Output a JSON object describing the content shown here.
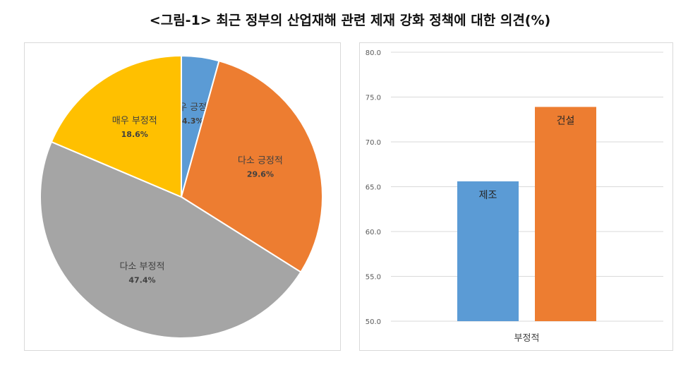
{
  "title": "<그림-1> 최근 정부의 산업재해 관련 제재 강화 정책에 대한 의견(%)",
  "chart_data": [
    {
      "type": "pie",
      "slices": [
        {
          "label": "매우 긍정적",
          "value": 4.3,
          "value_label": "4.3%",
          "color": "#5b9bd5"
        },
        {
          "label": "다소 긍정적",
          "value": 29.6,
          "value_label": "29.6%",
          "color": "#ed7d31"
        },
        {
          "label": "다소 부정적",
          "value": 47.4,
          "value_label": "47.4%",
          "color": "#a5a5a5"
        },
        {
          "label": "매우 부정적",
          "value": 18.6,
          "value_label": "18.6%",
          "color": "#ffc000"
        }
      ]
    },
    {
      "type": "bar",
      "categories": [
        "부정적"
      ],
      "series": [
        {
          "name": "제조",
          "values": [
            65.6
          ],
          "color": "#5b9bd5"
        },
        {
          "name": "건설",
          "values": [
            73.9
          ],
          "color": "#ed7d31"
        }
      ],
      "ylim": [
        50,
        80
      ],
      "yticks": [
        "50.0",
        "55.0",
        "60.0",
        "65.0",
        "70.0",
        "75.0",
        "80.0"
      ],
      "grid": true
    }
  ]
}
